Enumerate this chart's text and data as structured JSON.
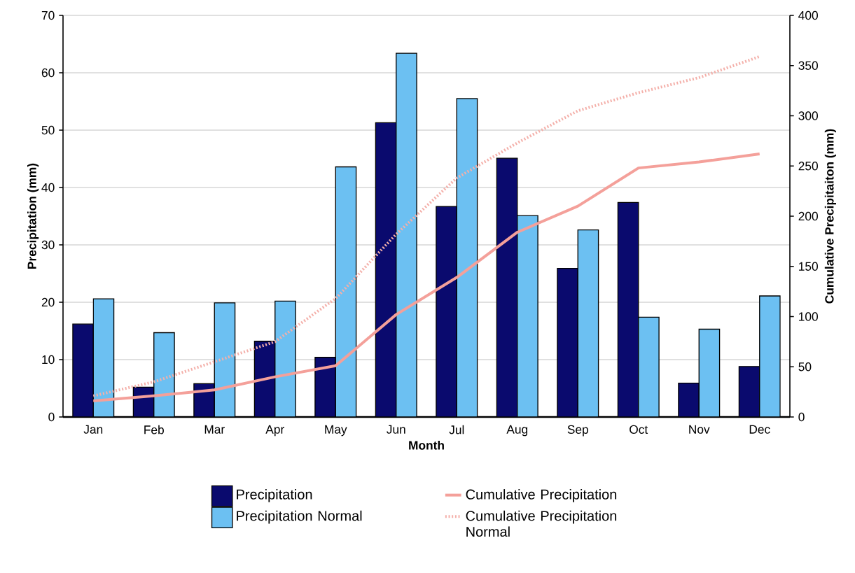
{
  "chart_data": {
    "type": "bar",
    "xlabel": "Month",
    "ylabel": "Precipitation (mm)",
    "y2label": "Cumulative Precipitaiton (mm)",
    "categories": [
      "Jan",
      "Feb",
      "Mar",
      "Apr",
      "May",
      "Jun",
      "Jul",
      "Aug",
      "Sep",
      "Oct",
      "Nov",
      "Dec"
    ],
    "series": [
      {
        "name": "Precipitation",
        "color": "#0a0a6e",
        "values": [
          16.2,
          5.2,
          5.8,
          13.2,
          10.4,
          51.3,
          36.7,
          45.1,
          25.9,
          37.4,
          5.9,
          8.8
        ]
      },
      {
        "name": "Precipitation Normal",
        "color": "#6cc0f2",
        "values": [
          20.6,
          14.7,
          19.9,
          20.2,
          43.6,
          63.4,
          55.5,
          35.1,
          32.6,
          17.4,
          15.3,
          21.1
        ]
      },
      {
        "name": "Cumulative Precipitation",
        "type": "line",
        "axis": "y2",
        "line_style": "solid",
        "color": "#f4a09a",
        "values": [
          16,
          21,
          27,
          40,
          51,
          102,
          139,
          184,
          210,
          248,
          254,
          262
        ]
      },
      {
        "name": "Cumulative Precipitation Normal",
        "type": "line",
        "axis": "y2",
        "line_style": "dotted",
        "color": "#f4b0aa",
        "values": [
          21,
          35,
          55,
          75,
          118,
          182,
          238,
          273,
          305,
          323,
          338,
          359
        ]
      }
    ],
    "ylim": [
      0,
      70
    ],
    "yticks": [
      0,
      10,
      20,
      30,
      40,
      50,
      60,
      70
    ],
    "y2lim": [
      0,
      400
    ],
    "y2ticks": [
      0,
      50,
      100,
      150,
      200,
      250,
      300,
      350,
      400
    ],
    "grid": "y",
    "legend": "bottom"
  }
}
